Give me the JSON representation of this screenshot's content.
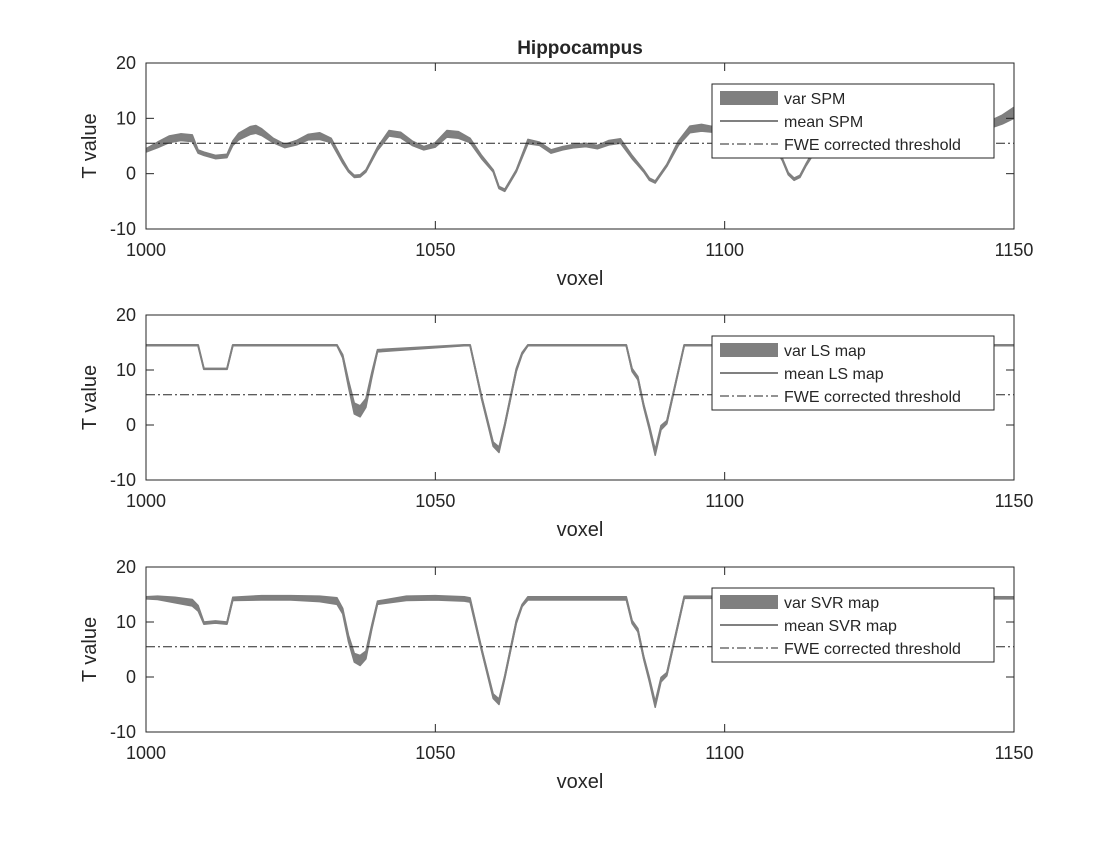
{
  "figure": {
    "title": "Hippocampus"
  },
  "colors": {
    "band": "#7f7f7f",
    "line": "#808080",
    "threshold": "#262626",
    "axes": "#262626",
    "legend_border": "#262626",
    "background": "#ffffff"
  },
  "chart_data": [
    {
      "type": "area",
      "title": "Hippocampus",
      "xlabel": "voxel",
      "ylabel": "T value",
      "xlim": [
        1000,
        1150
      ],
      "ylim": [
        -10,
        20
      ],
      "xticks": [
        "1000",
        "1050",
        "1100",
        "1150"
      ],
      "yticks": [
        "-10",
        "0",
        "10",
        "20"
      ],
      "grid": false,
      "legend_position": "top-right",
      "legend": [
        "var SPM",
        "mean SPM",
        "FWE corrected threshold"
      ],
      "threshold": 5.5,
      "x": [
        1000,
        1002,
        1004,
        1006,
        1008,
        1009,
        1010,
        1012,
        1014,
        1015,
        1016,
        1018,
        1019,
        1020,
        1022,
        1024,
        1026,
        1028,
        1030,
        1032,
        1034,
        1035,
        1036,
        1037,
        1038,
        1040,
        1042,
        1044,
        1046,
        1048,
        1050,
        1052,
        1054,
        1056,
        1058,
        1060,
        1061,
        1062,
        1064,
        1066,
        1068,
        1070,
        1072,
        1074,
        1076,
        1078,
        1080,
        1082,
        1084,
        1086,
        1087,
        1088,
        1090,
        1092,
        1094,
        1096,
        1098,
        1100,
        1102,
        1104,
        1106,
        1108,
        1110,
        1111,
        1112,
        1113,
        1114,
        1116,
        1118,
        1120,
        1125,
        1130,
        1135,
        1140,
        1145,
        1148,
        1150
      ],
      "series": [
        {
          "name": "mean SPM",
          "values": [
            4.2,
            5.2,
            6.2,
            6.6,
            6.4,
            4.0,
            3.6,
            3.0,
            3.2,
            5.5,
            6.7,
            7.8,
            8.0,
            7.5,
            6.0,
            5.0,
            5.6,
            6.6,
            6.8,
            6.0,
            2.2,
            0.5,
            -0.5,
            -0.4,
            0.5,
            4.5,
            7.3,
            7.0,
            5.5,
            4.6,
            5.2,
            7.2,
            7.0,
            6.0,
            3.0,
            0.5,
            -2.5,
            -3.0,
            0.5,
            5.8,
            5.4,
            4.0,
            4.6,
            5.0,
            5.2,
            4.8,
            5.6,
            5.9,
            3.0,
            0.5,
            -1.0,
            -1.5,
            1.5,
            5.5,
            8.0,
            8.3,
            8.0,
            7.6,
            7.4,
            7.3,
            7.0,
            6.0,
            2.5,
            0.0,
            -1.0,
            -0.5,
            1.5,
            5.0,
            6.5,
            7.0,
            7.2,
            7.4,
            7.6,
            8.0,
            8.5,
            9.8,
            11.0
          ],
          "spread": [
            0.3,
            0.5,
            0.6,
            0.6,
            0.6,
            0.3,
            0.3,
            0.3,
            0.3,
            0.4,
            0.6,
            0.7,
            0.7,
            0.6,
            0.4,
            0.3,
            0.4,
            0.5,
            0.6,
            0.4,
            0.3,
            0.2,
            0.2,
            0.2,
            0.2,
            0.3,
            0.5,
            0.5,
            0.4,
            0.3,
            0.4,
            0.6,
            0.6,
            0.4,
            0.3,
            0.2,
            0.2,
            0.2,
            0.2,
            0.4,
            0.3,
            0.3,
            0.3,
            0.3,
            0.3,
            0.3,
            0.4,
            0.4,
            0.3,
            0.2,
            0.2,
            0.2,
            0.2,
            0.4,
            0.6,
            0.6,
            0.5,
            0.5,
            0.4,
            0.4,
            0.4,
            0.3,
            0.2,
            0.2,
            0.2,
            0.2,
            0.2,
            0.4,
            0.4,
            0.4,
            0.4,
            0.4,
            0.4,
            0.5,
            0.6,
            0.8,
            1.0
          ]
        }
      ]
    },
    {
      "type": "area",
      "title": "",
      "xlabel": "voxel",
      "ylabel": "T value",
      "xlim": [
        1000,
        1150
      ],
      "ylim": [
        -10,
        20
      ],
      "xticks": [
        "1000",
        "1050",
        "1100",
        "1150"
      ],
      "yticks": [
        "-10",
        "0",
        "10",
        "20"
      ],
      "grid": false,
      "legend_position": "top-right",
      "legend": [
        "var LS map",
        "mean LS map",
        "FWE corrected threshold"
      ],
      "threshold": 5.5,
      "x": [
        1000,
        1009,
        1010,
        1014,
        1015,
        1033,
        1034,
        1035,
        1036,
        1037,
        1038,
        1039,
        1040,
        1055,
        1056,
        1058,
        1060,
        1061,
        1062,
        1064,
        1065,
        1066,
        1083,
        1084,
        1085,
        1086,
        1087,
        1088,
        1089,
        1090,
        1093,
        1150
      ],
      "series": [
        {
          "name": "mean LS map",
          "values": [
            14.5,
            14.5,
            10.2,
            10.2,
            14.5,
            14.5,
            12.5,
            7.5,
            3.0,
            2.5,
            4.0,
            9.0,
            13.5,
            14.5,
            14.5,
            5.0,
            -3.5,
            -4.5,
            0.0,
            10.0,
            13.0,
            14.5,
            14.5,
            10.0,
            8.5,
            3.5,
            -0.5,
            -5.0,
            -0.5,
            0.5,
            14.5,
            14.5
          ],
          "spread": [
            0.1,
            0.1,
            0.1,
            0.1,
            0.1,
            0.1,
            0.3,
            0.6,
            1.0,
            1.0,
            0.8,
            0.5,
            0.2,
            0.1,
            0.1,
            0.3,
            0.4,
            0.5,
            0.3,
            0.3,
            0.2,
            0.1,
            0.1,
            0.3,
            0.3,
            0.3,
            0.4,
            0.5,
            0.4,
            0.3,
            0.1,
            0.1
          ]
        }
      ]
    },
    {
      "type": "area",
      "title": "",
      "xlabel": "voxel",
      "ylabel": "T value",
      "xlim": [
        1000,
        1150
      ],
      "ylim": [
        -10,
        20
      ],
      "xticks": [
        "1000",
        "1050",
        "1100",
        "1150"
      ],
      "yticks": [
        "-10",
        "0",
        "10",
        "20"
      ],
      "grid": false,
      "legend_position": "top-right",
      "legend": [
        "var SVR map",
        "mean SVR map",
        "FWE corrected threshold"
      ],
      "threshold": 5.5,
      "x": [
        1000,
        1002,
        1005,
        1008,
        1009,
        1010,
        1012,
        1014,
        1015,
        1020,
        1025,
        1030,
        1033,
        1034,
        1035,
        1036,
        1037,
        1038,
        1039,
        1040,
        1045,
        1050,
        1055,
        1056,
        1058,
        1060,
        1061,
        1062,
        1064,
        1065,
        1066,
        1075,
        1083,
        1084,
        1085,
        1086,
        1087,
        1088,
        1089,
        1090,
        1093,
        1100,
        1150
      ],
      "series": [
        {
          "name": "mean SVR map",
          "values": [
            14.4,
            14.4,
            14.0,
            13.5,
            12.5,
            9.8,
            10.0,
            9.8,
            14.2,
            14.4,
            14.4,
            14.2,
            13.8,
            12.0,
            7.0,
            3.5,
            3.0,
            4.0,
            9.0,
            13.5,
            14.3,
            14.4,
            14.2,
            14.0,
            5.0,
            -3.5,
            -4.5,
            0.0,
            10.0,
            13.0,
            14.3,
            14.3,
            14.3,
            10.0,
            8.5,
            3.5,
            -0.5,
            -5.0,
            -0.5,
            0.5,
            14.5,
            14.5,
            14.4
          ],
          "spread": [
            0.2,
            0.3,
            0.5,
            0.6,
            0.5,
            0.2,
            0.2,
            0.2,
            0.3,
            0.4,
            0.4,
            0.5,
            0.6,
            0.5,
            0.6,
            0.8,
            0.9,
            0.7,
            0.4,
            0.3,
            0.4,
            0.4,
            0.4,
            0.4,
            0.3,
            0.4,
            0.5,
            0.3,
            0.3,
            0.2,
            0.3,
            0.3,
            0.3,
            0.3,
            0.3,
            0.3,
            0.4,
            0.5,
            0.4,
            0.3,
            0.2,
            0.2,
            0.2
          ]
        }
      ]
    }
  ]
}
